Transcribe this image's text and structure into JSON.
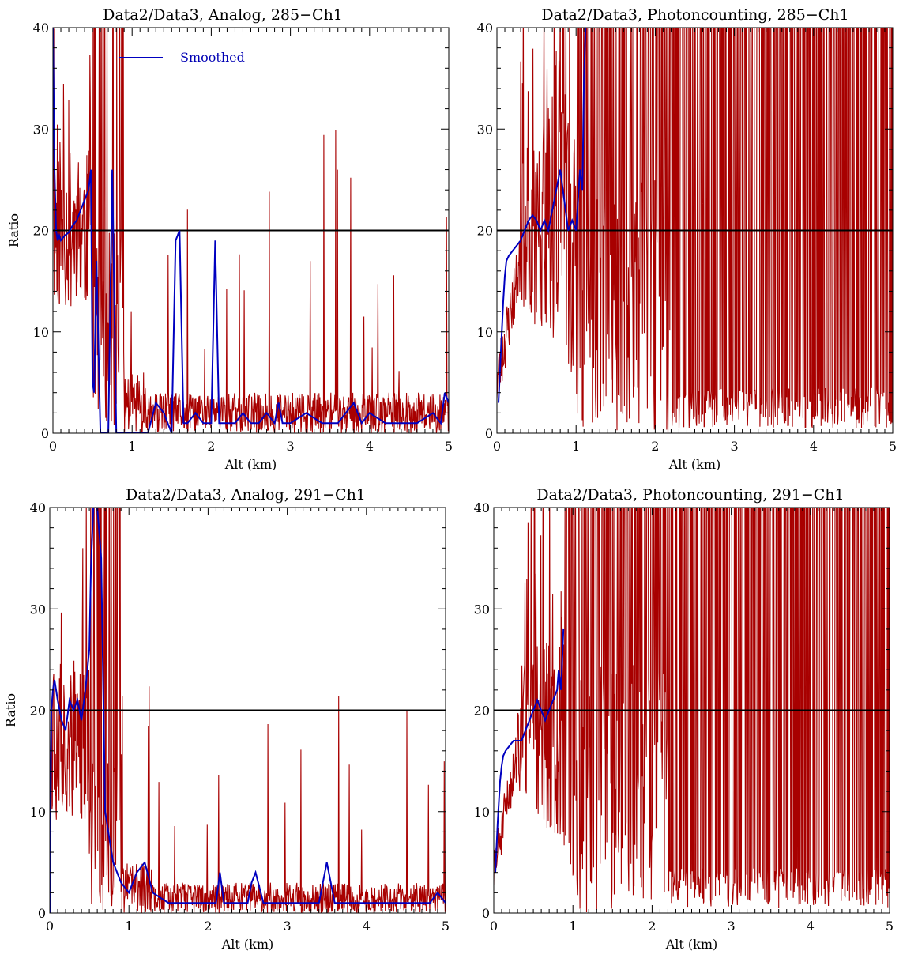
{
  "colors": {
    "raw": "#a80000",
    "smoothed": "#0000c0",
    "axes": "#000000",
    "background": "#ffffff"
  },
  "chart_data": [
    {
      "type": "line",
      "title": "Data2/Data3, Analog, 285−Ch1",
      "xlabel": "Alt (km)",
      "ylabel": "Ratio",
      "xlim": [
        0,
        5
      ],
      "ylim": [
        0,
        40
      ],
      "x_ticks": [
        "0",
        "1",
        "2",
        "3",
        "4",
        "5"
      ],
      "y_ticks": [
        "0",
        "10",
        "20",
        "30",
        "40"
      ],
      "reference_line": 20,
      "legend": {
        "position": "top-left",
        "entries": [
          "Smoothed"
        ]
      },
      "series": [
        {
          "name": "Smoothed",
          "x": [
            0,
            0.02,
            0.04,
            0.06,
            0.08,
            0.1,
            0.15,
            0.2,
            0.25,
            0.3,
            0.35,
            0.4,
            0.45,
            0.48,
            0.5,
            0.52,
            0.55,
            0.6,
            0.7,
            0.75,
            0.8,
            0.85,
            1.0,
            1.2,
            1.3,
            1.4,
            1.5,
            1.55,
            1.6,
            1.65,
            1.7,
            1.8,
            1.9,
            2.0,
            2.05,
            2.1,
            2.2,
            2.3,
            2.4,
            2.5,
            2.6,
            2.7,
            2.8,
            2.85,
            2.9,
            3.0,
            3.2,
            3.4,
            3.6,
            3.8,
            3.9,
            4.0,
            4.2,
            4.4,
            4.6,
            4.8,
            4.9,
            4.95,
            5.0
          ],
          "y": [
            40,
            26,
            20,
            19,
            19.5,
            19,
            19.5,
            19.8,
            20.5,
            21,
            22,
            23,
            24,
            26,
            5,
            4,
            17,
            0,
            0,
            26,
            0,
            0,
            0,
            0,
            3,
            2,
            0,
            19,
            20,
            1,
            1,
            2,
            1,
            1,
            19,
            1,
            1,
            1,
            2,
            1,
            1,
            2,
            1,
            3,
            1,
            1,
            2,
            1,
            1,
            3,
            1,
            2,
            1,
            1,
            1,
            2,
            1,
            4,
            3
          ]
        }
      ]
    },
    {
      "type": "line",
      "title": "Data2/Data3, Photoncounting, 285−Ch1",
      "xlabel": "Alt (km)",
      "ylabel": "",
      "xlim": [
        0,
        5
      ],
      "ylim": [
        0,
        40
      ],
      "x_ticks": [
        "0",
        "1",
        "2",
        "3",
        "4",
        "5"
      ],
      "y_ticks": [
        "0",
        "10",
        "20",
        "30",
        "40"
      ],
      "reference_line": 20,
      "series": [
        {
          "name": "Smoothed",
          "x": [
            0.02,
            0.05,
            0.08,
            0.1,
            0.12,
            0.15,
            0.2,
            0.25,
            0.3,
            0.35,
            0.4,
            0.45,
            0.5,
            0.55,
            0.6,
            0.65,
            0.7,
            0.75,
            0.8,
            0.85,
            0.9,
            0.95,
            1.0,
            1.05,
            1.08,
            1.1,
            1.12
          ],
          "y": [
            3,
            8,
            13,
            15.5,
            17,
            17.5,
            18,
            18.5,
            19,
            20,
            21,
            21.5,
            21,
            20,
            21,
            20,
            22,
            24,
            26,
            23,
            20,
            21,
            20,
            26,
            24,
            35,
            40
          ]
        }
      ]
    },
    {
      "type": "line",
      "title": "Data2/Data3, Analog, 291−Ch1",
      "xlabel": "Alt (km)",
      "ylabel": "Ratio",
      "xlim": [
        0,
        5
      ],
      "ylim": [
        0,
        40
      ],
      "x_ticks": [
        "0",
        "1",
        "2",
        "3",
        "4",
        "5"
      ],
      "y_ticks": [
        "0",
        "10",
        "20",
        "30",
        "40"
      ],
      "reference_line": 20,
      "series": [
        {
          "name": "Smoothed",
          "x": [
            0,
            0.02,
            0.04,
            0.06,
            0.1,
            0.15,
            0.2,
            0.25,
            0.3,
            0.35,
            0.4,
            0.45,
            0.5,
            0.52,
            0.55,
            0.6,
            0.65,
            0.7,
            0.8,
            0.9,
            1.0,
            1.1,
            1.2,
            1.3,
            1.5,
            1.7,
            1.9,
            2.0,
            2.1,
            2.15,
            2.2,
            2.3,
            2.4,
            2.5,
            2.55,
            2.6,
            2.7,
            2.8,
            3.0,
            3.2,
            3.4,
            3.5,
            3.6,
            3.8,
            4.0,
            4.2,
            4.4,
            4.5,
            4.6,
            4.8,
            4.9,
            5.0
          ],
          "y": [
            0,
            20,
            22,
            23,
            21,
            19,
            18,
            21,
            20,
            21,
            19,
            22,
            26,
            34,
            40,
            40,
            35,
            10,
            5,
            3,
            2,
            4,
            5,
            2,
            1,
            1,
            1,
            1,
            1,
            4,
            1,
            1,
            1,
            1,
            3,
            4,
            1,
            1,
            1,
            1,
            1,
            5,
            1,
            1,
            1,
            1,
            1,
            1,
            1,
            1,
            2,
            1
          ]
        }
      ]
    },
    {
      "type": "line",
      "title": "Data2/Data3, Photoncounting, 291−Ch1",
      "xlabel": "Alt (km)",
      "ylabel": "",
      "xlim": [
        0,
        5
      ],
      "ylim": [
        0,
        40
      ],
      "x_ticks": [
        "0",
        "1",
        "2",
        "3",
        "4",
        "5"
      ],
      "y_ticks": [
        "0",
        "10",
        "20",
        "30",
        "40"
      ],
      "reference_line": 20,
      "series": [
        {
          "name": "Smoothed",
          "x": [
            0.02,
            0.05,
            0.08,
            0.1,
            0.12,
            0.15,
            0.2,
            0.25,
            0.3,
            0.35,
            0.4,
            0.45,
            0.5,
            0.55,
            0.6,
            0.65,
            0.7,
            0.75,
            0.8,
            0.82,
            0.85,
            0.88
          ],
          "y": [
            4,
            9,
            13,
            14.5,
            15.5,
            16,
            16.5,
            17,
            17,
            17,
            18,
            19,
            20,
            21,
            20,
            19,
            20,
            21,
            22,
            24,
            22,
            28
          ]
        }
      ]
    }
  ]
}
